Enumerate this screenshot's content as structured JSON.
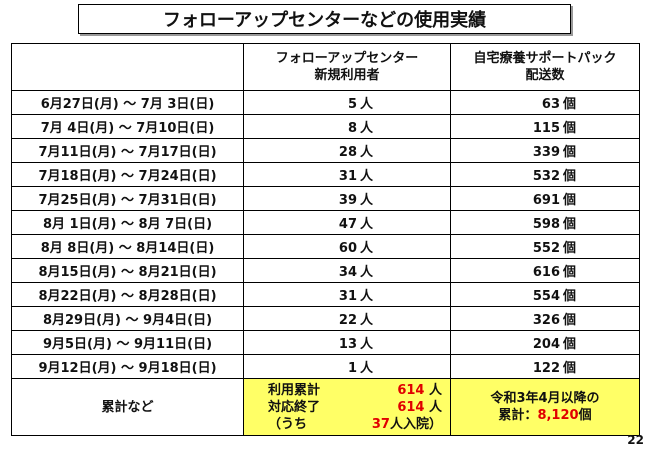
{
  "title": "フォローアップセンターなどの使用実績",
  "headers": {
    "users_line1": "フォローアップセンター",
    "users_line2": "新規利用者",
    "packs_line1": "自宅療養サポートパック",
    "packs_line2": "配送数"
  },
  "units": {
    "person": "人",
    "piece": "個"
  },
  "rows": [
    {
      "period": "6月27日(月) ～ 7月 3日(日)",
      "users": "5",
      "packs": "63"
    },
    {
      "period": "7月 4日(月) ～ 7月10日(日)",
      "users": "8",
      "packs": "115"
    },
    {
      "period": "7月11日(月) ～ 7月17日(日)",
      "users": "28",
      "packs": "339"
    },
    {
      "period": "7月18日(月) ～ 7月24日(日)",
      "users": "31",
      "packs": "532"
    },
    {
      "period": "7月25日(月) ～ 7月31日(日)",
      "users": "39",
      "packs": "691"
    },
    {
      "period": "8月 1日(月) ～ 8月 7日(日)",
      "users": "47",
      "packs": "598"
    },
    {
      "period": "8月 8日(月) ～ 8月14日(日)",
      "users": "60",
      "packs": "552"
    },
    {
      "period": "8月15日(月) ～ 8月21日(日)",
      "users": "34",
      "packs": "616"
    },
    {
      "period": "8月22日(月) ～ 8月28日(日)",
      "users": "31",
      "packs": "554"
    },
    {
      "period": "8月29日(月) ～ 9月4日(日)",
      "users": "22",
      "packs": "326"
    },
    {
      "period": "9月5日(月) ～ 9月11日(日)",
      "users": "13",
      "packs": "204"
    },
    {
      "period": "9月12日(月) ～ 9月18日(日)",
      "users": "1",
      "packs": "122"
    }
  ],
  "total": {
    "label": "累計など",
    "cum_label": "利用累計",
    "cum_value": "614",
    "cum_unit": "人",
    "end_label": "対応終了",
    "end_value": "614",
    "end_unit": "人",
    "incl_label": "（うち",
    "incl_value": "37",
    "incl_unit": "人入院）",
    "packs_line1": "令和3年4月以降の",
    "packs_prefix": "累計：",
    "packs_value": "8,120",
    "packs_unit": "個"
  },
  "page_number": "22",
  "colors": {
    "highlight": "#ffff66",
    "accent_red": "#e00000"
  }
}
